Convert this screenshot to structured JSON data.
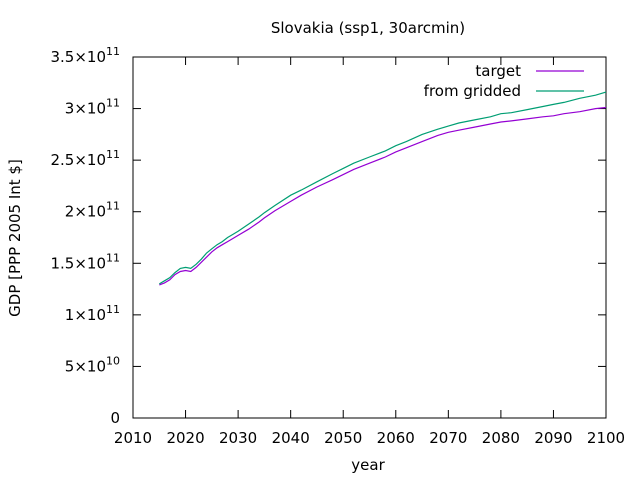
{
  "chart_data": {
    "type": "line",
    "title": "Slovakia (ssp1, 30arcmin)",
    "xlabel": "year",
    "ylabel": "GDP [PPP 2005 Int $]",
    "xlim": [
      2010,
      2100
    ],
    "ylim": [
      0,
      350000000000
    ],
    "grid": false,
    "legend_position": "top-right",
    "x_ticks": [
      {
        "value": 2010,
        "label": "2010"
      },
      {
        "value": 2020,
        "label": "2020"
      },
      {
        "value": 2030,
        "label": "2030"
      },
      {
        "value": 2040,
        "label": "2040"
      },
      {
        "value": 2050,
        "label": "2050"
      },
      {
        "value": 2060,
        "label": "2060"
      },
      {
        "value": 2070,
        "label": "2070"
      },
      {
        "value": 2080,
        "label": "2080"
      },
      {
        "value": 2090,
        "label": "2090"
      },
      {
        "value": 2100,
        "label": "2100"
      }
    ],
    "y_ticks": [
      {
        "value": 0,
        "mantissa": "0",
        "exp": ""
      },
      {
        "value": 50000000000,
        "mantissa": "5×10",
        "exp": "10"
      },
      {
        "value": 100000000000,
        "mantissa": "1×10",
        "exp": "11"
      },
      {
        "value": 150000000000,
        "mantissa": "1.5×10",
        "exp": "11"
      },
      {
        "value": 200000000000,
        "mantissa": "2×10",
        "exp": "11"
      },
      {
        "value": 250000000000,
        "mantissa": "2.5×10",
        "exp": "11"
      },
      {
        "value": 300000000000,
        "mantissa": "3×10",
        "exp": "11"
      },
      {
        "value": 350000000000,
        "mantissa": "3.5×10",
        "exp": "11"
      }
    ],
    "x": [
      2015,
      2016,
      2017,
      2018,
      2019,
      2020,
      2021,
      2022,
      2023,
      2024,
      2025,
      2026,
      2027,
      2028,
      2029,
      2030,
      2032,
      2034,
      2035,
      2037,
      2040,
      2042,
      2045,
      2048,
      2050,
      2052,
      2055,
      2058,
      2060,
      2062,
      2065,
      2068,
      2070,
      2072,
      2075,
      2078,
      2080,
      2082,
      2085,
      2088,
      2090,
      2092,
      2095,
      2098,
      2100
    ],
    "series": [
      {
        "name": "target",
        "color": "#9400d3",
        "values": [
          129,
          131,
          134,
          139,
          142,
          143,
          142,
          146,
          151,
          156,
          161,
          165,
          168,
          171,
          174,
          177,
          183,
          190,
          194,
          201,
          210,
          216,
          224,
          231,
          236,
          241,
          247,
          253,
          258,
          262,
          268,
          274,
          277,
          279,
          282,
          285,
          287,
          288,
          290,
          292,
          293,
          295,
          297,
          300,
          301
        ]
      },
      {
        "name": "from gridded",
        "color": "#009e73",
        "values": [
          130,
          133,
          136,
          141,
          145,
          146,
          145,
          149,
          154,
          160,
          164,
          168,
          171,
          175,
          178,
          181,
          188,
          195,
          199,
          206,
          216,
          221,
          229,
          237,
          242,
          247,
          253,
          259,
          264,
          268,
          275,
          280,
          283,
          286,
          289,
          292,
          295,
          296,
          299,
          302,
          304,
          306,
          310,
          313,
          316
        ]
      }
    ]
  }
}
